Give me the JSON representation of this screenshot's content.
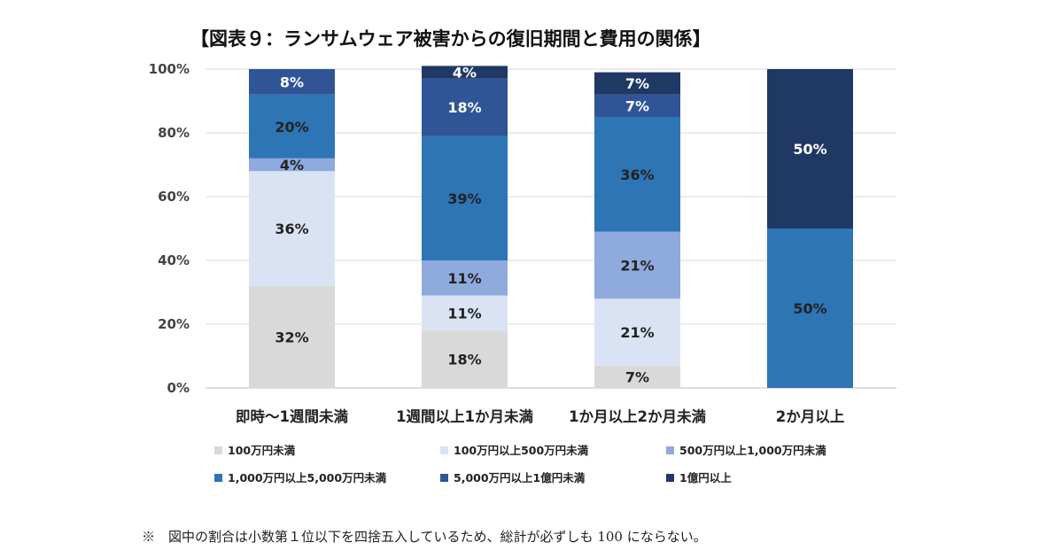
{
  "chart_data": {
    "type": "bar",
    "stacked": true,
    "title": "【図表９：ランサムウェア被害からの復旧期間と費用の関係】",
    "categories": [
      "即時～1週間未満",
      "1週間以上1か月未満",
      "1か月以上2か月未満",
      "2か月以上"
    ],
    "ylim": [
      0,
      100
    ],
    "yticks": [
      "0%",
      "20%",
      "40%",
      "60%",
      "80%",
      "100%"
    ],
    "ytick_values": [
      0,
      20,
      40,
      60,
      80,
      100
    ],
    "grid": true,
    "legend_position": "bottom",
    "series": [
      {
        "name": "100万円未満",
        "color": "#d9d9d9",
        "label_color": "#222222",
        "values": [
          32,
          18,
          7,
          0
        ],
        "labels": [
          "32%",
          "18%",
          "7%",
          ""
        ]
      },
      {
        "name": "100万円以上500万円未満",
        "color": "#dae3f3",
        "label_color": "#222222",
        "values": [
          36,
          11,
          21,
          0
        ],
        "labels": [
          "36%",
          "11%",
          "21%",
          ""
        ]
      },
      {
        "name": "500万円以上1,000万円未満",
        "color": "#8faadc",
        "label_color": "#222222",
        "values": [
          4,
          11,
          21,
          0
        ],
        "labels": [
          "4%",
          "11%",
          "21%",
          ""
        ]
      },
      {
        "name": "1,000万円以上5,000万円未満",
        "color": "#2e75b6",
        "label_color": "#222222",
        "values": [
          20,
          39,
          36,
          50
        ],
        "labels": [
          "20%",
          "39%",
          "36%",
          "50%"
        ]
      },
      {
        "name": "5,000万円以上1億円未満",
        "color": "#2f5597",
        "label_color": "#ffffff",
        "values": [
          8,
          18,
          7,
          0
        ],
        "labels": [
          "8%",
          "18%",
          "7%",
          ""
        ]
      },
      {
        "name": "1億円以上",
        "color": "#203864",
        "label_color": "#ffffff",
        "values": [
          0,
          4,
          7,
          50
        ],
        "labels": [
          "",
          "4%",
          "7%",
          "50%"
        ]
      }
    ]
  },
  "footnote": "※　図中の割合は小数第１位以下を四捨五入しているため、総計が必ずしも 100 にならない。"
}
